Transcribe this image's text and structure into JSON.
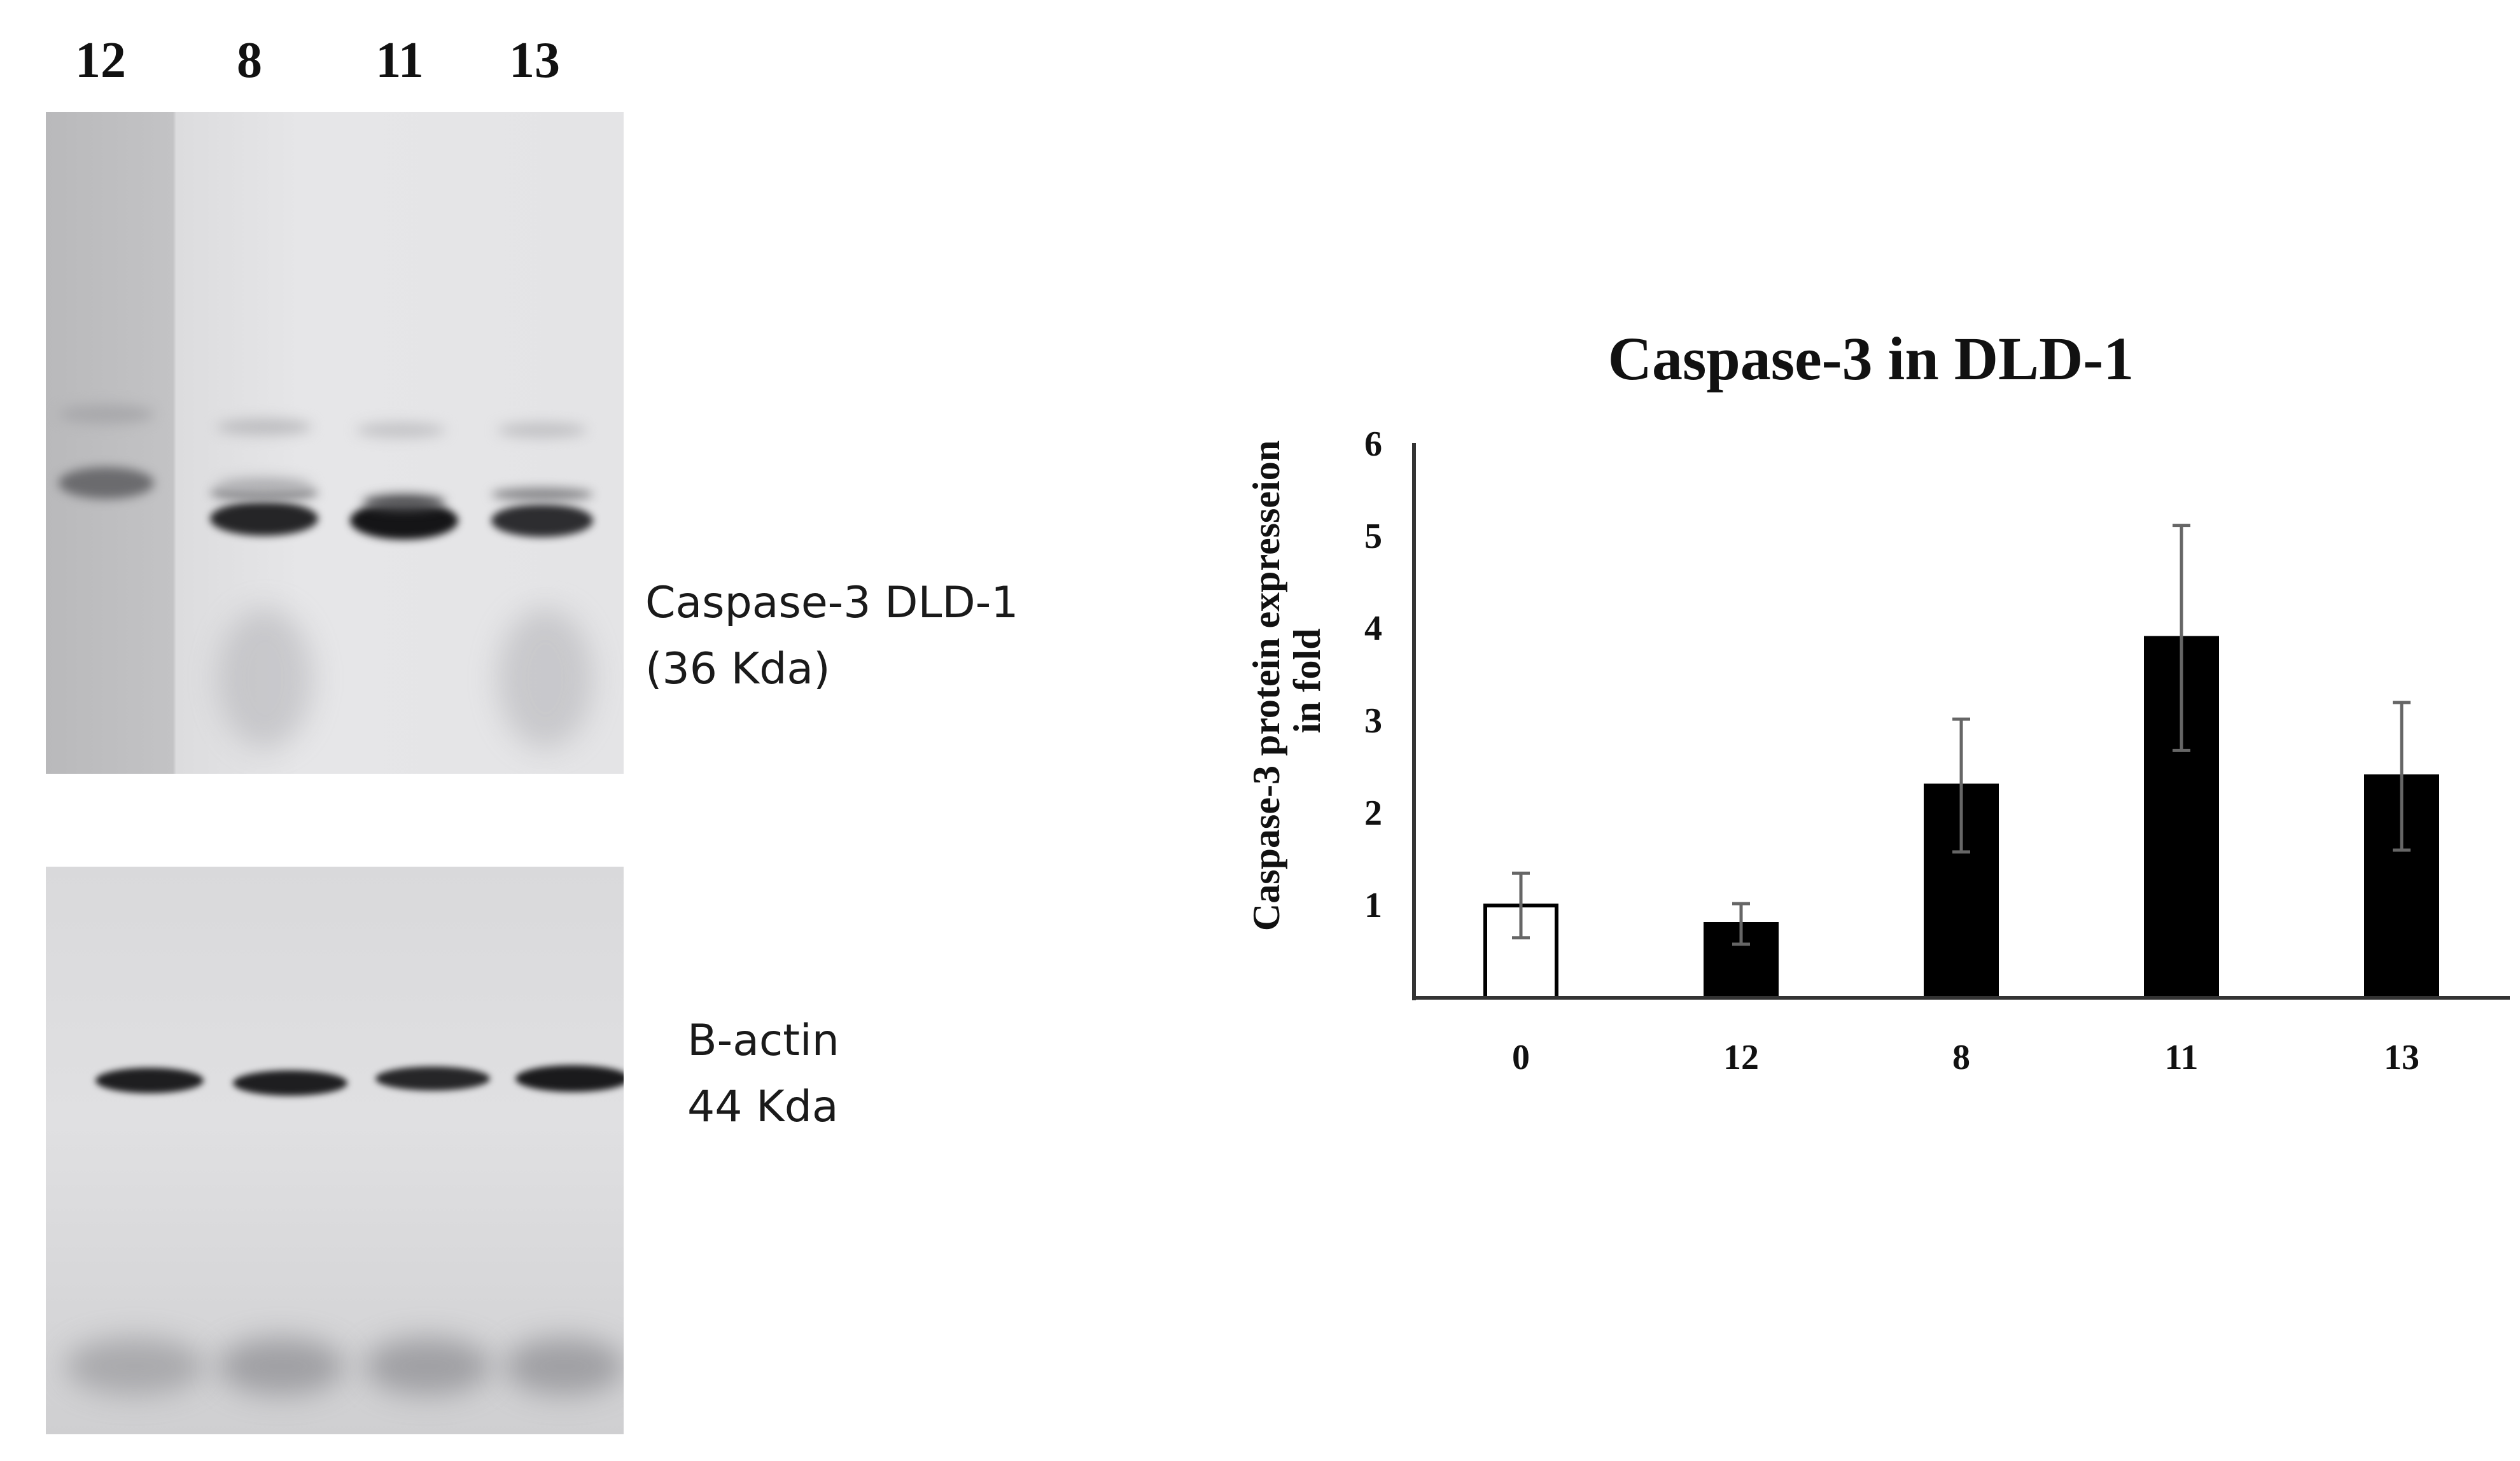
{
  "blot": {
    "lane_labels": [
      "12",
      "8",
      "11",
      "13"
    ],
    "top_caption_line1": "Caspase-3 DLD-1",
    "top_caption_line2": "(36 Kda)",
    "bottom_caption_line1": "B-actin",
    "bottom_caption_line2": "44 Kda"
  },
  "chart_data": {
    "type": "bar",
    "title": "Caspase-3 in DLD-1",
    "ylabel_line1": "Caspase-3 protein expresseion",
    "ylabel_line2": "in fold",
    "xlabel": "",
    "categories": [
      "0",
      "12",
      "8",
      "11",
      "13"
    ],
    "values": [
      1.0,
      0.8,
      2.3,
      3.9,
      2.4
    ],
    "error": [
      0.35,
      0.22,
      0.72,
      1.22,
      0.8
    ],
    "bar_fill": [
      "#ffffff",
      "#000000",
      "#000000",
      "#000000",
      "#000000"
    ],
    "ylim": [
      0,
      6
    ],
    "yticks": [
      "1",
      "2",
      "3",
      "4",
      "5",
      "6"
    ],
    "grid": false,
    "legend": "none"
  }
}
